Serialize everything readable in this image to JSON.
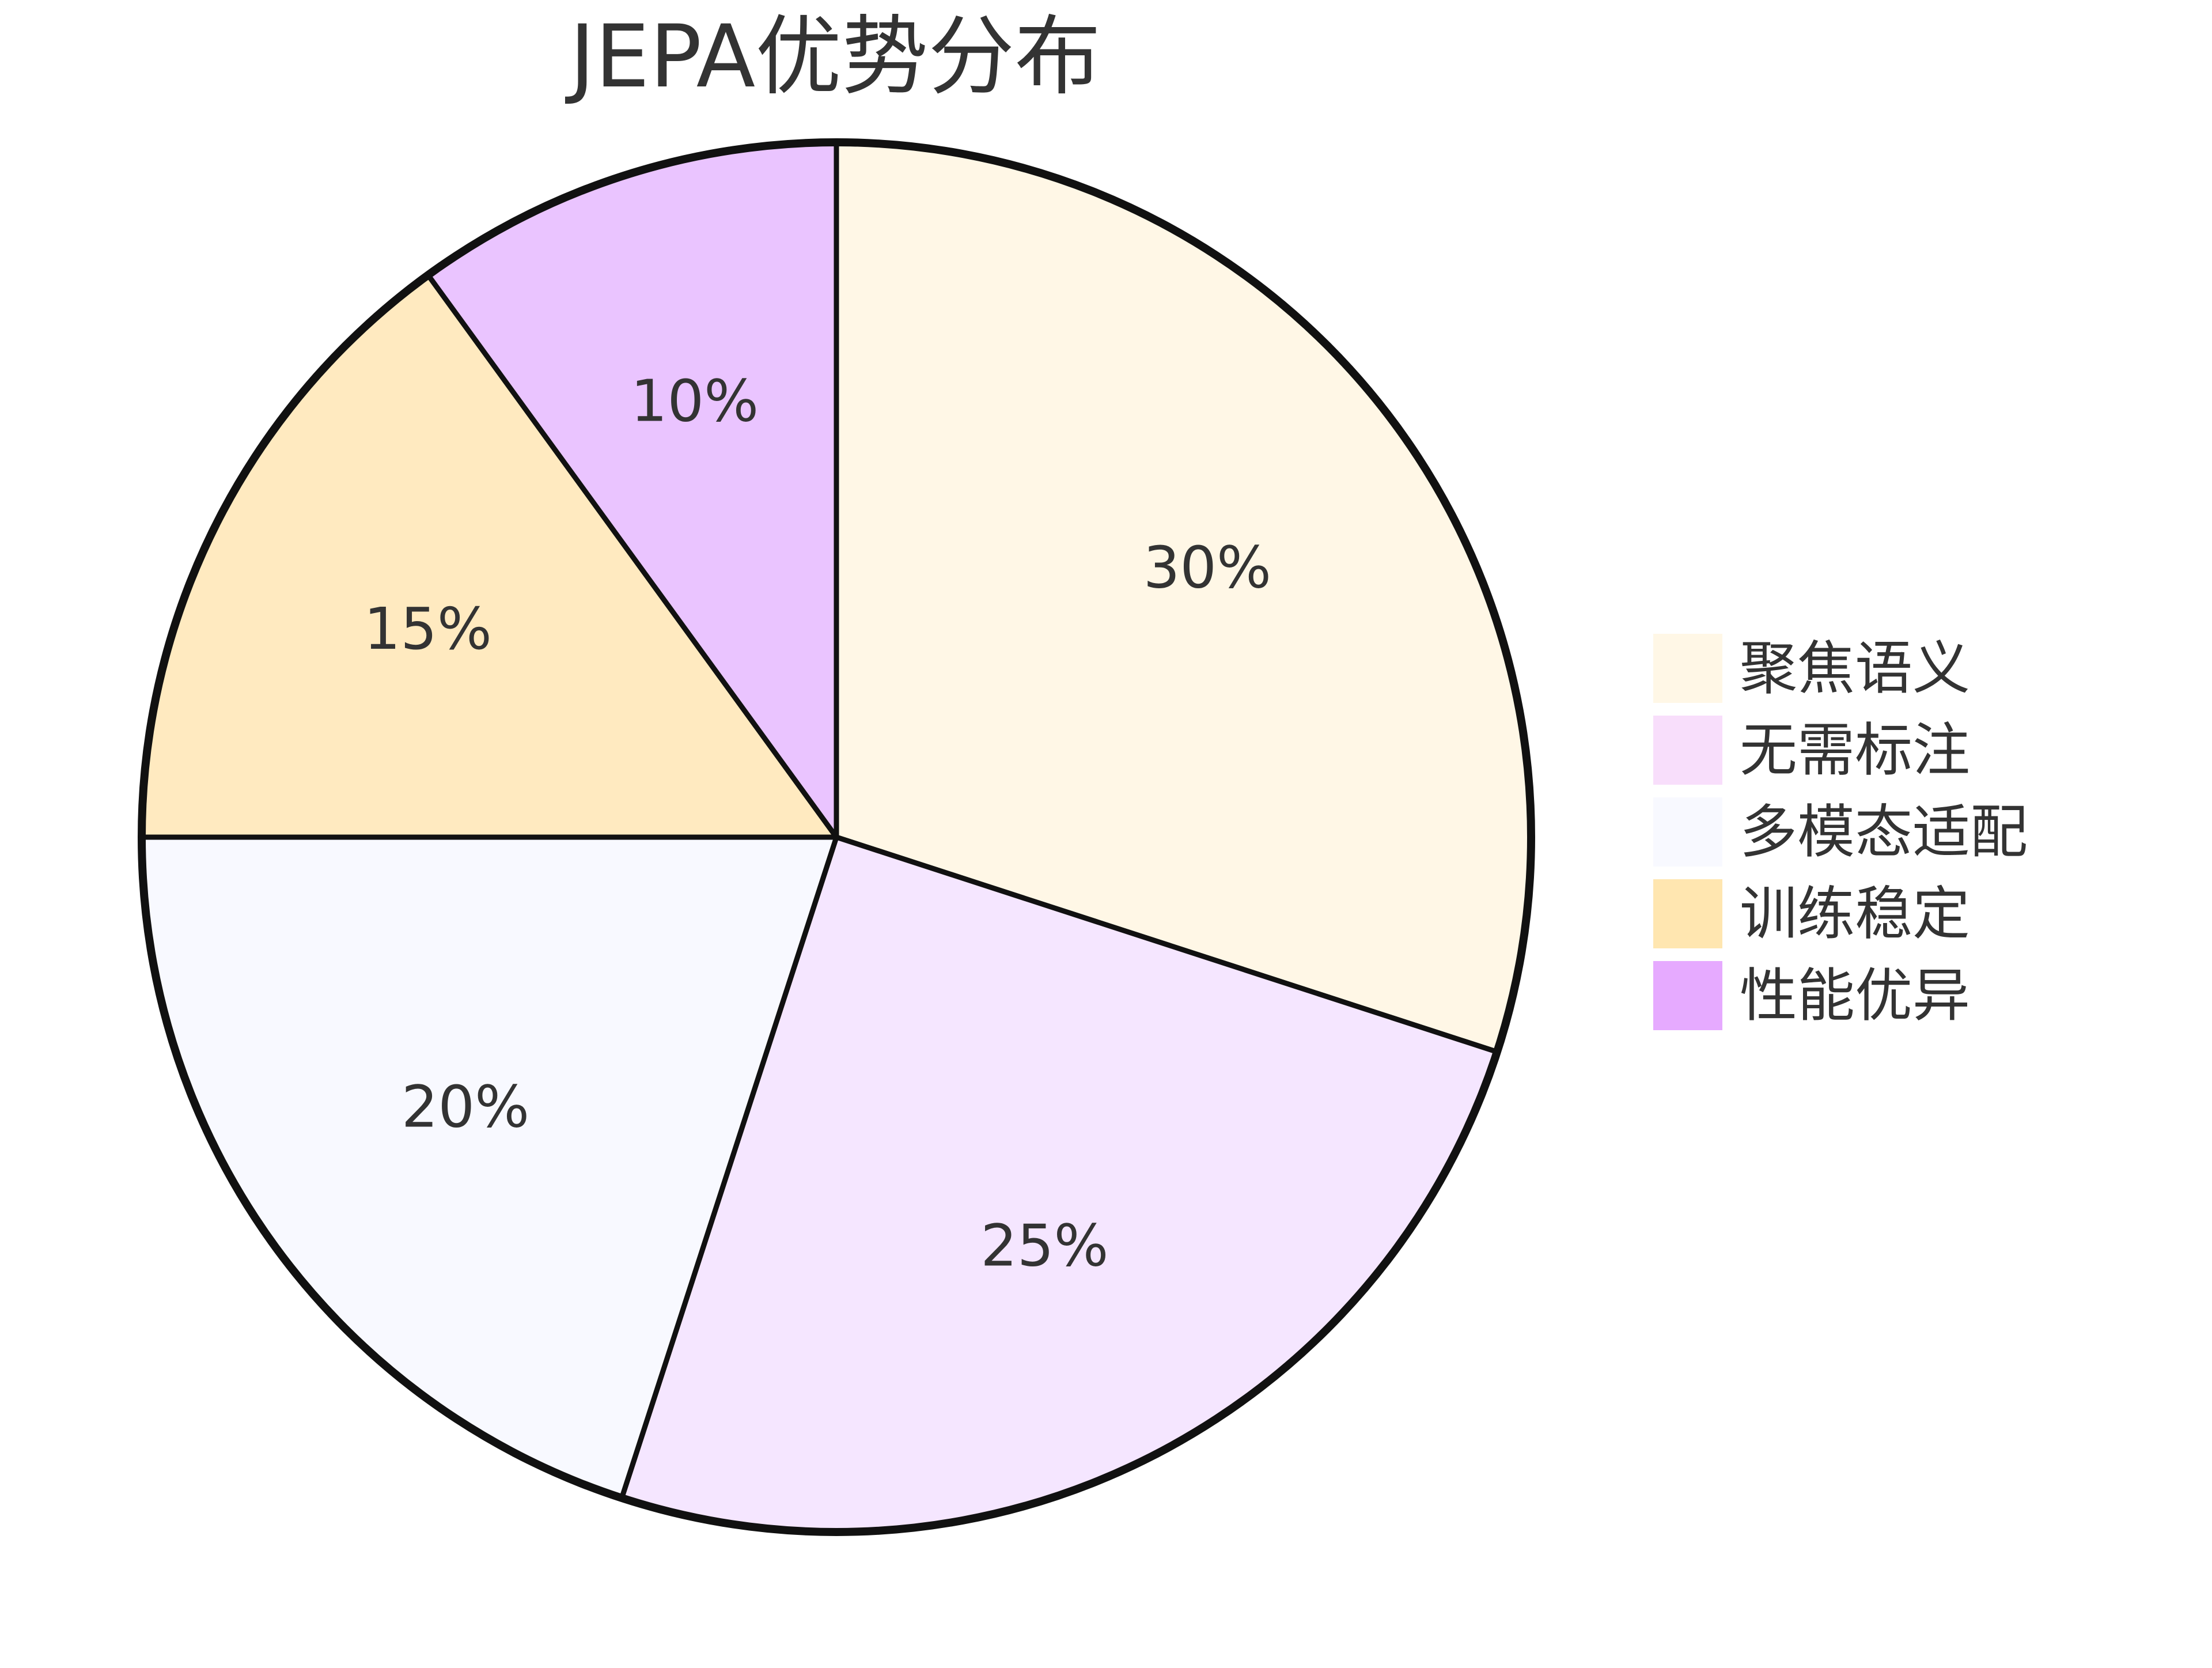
{
  "chart_data": {
    "type": "pie",
    "title": "JEPA优势分布",
    "start_angle_deg": 90,
    "direction": "clockwise",
    "legend_placement": "right",
    "slices": [
      {
        "label": "聚焦语义",
        "value": 30,
        "display": "30%",
        "color": "#FFF7E6"
      },
      {
        "label": "无需标注",
        "value": 25,
        "display": "25%",
        "color": "#F5E6FF"
      },
      {
        "label": "多模态适配",
        "value": 20,
        "display": "20%",
        "color": "#F8F9FF"
      },
      {
        "label": "训练稳定",
        "value": 15,
        "display": "15%",
        "color": "#FFEAC0"
      },
      {
        "label": "性能优异",
        "value": 10,
        "display": "10%",
        "color": "#EAC4FF"
      }
    ],
    "legend_colors": [
      "#FFF7E6",
      "#F8DEFB",
      "#F8F9FF",
      "#FFE6B0",
      "#E6AAFF"
    ],
    "outline_color": "#111111"
  }
}
